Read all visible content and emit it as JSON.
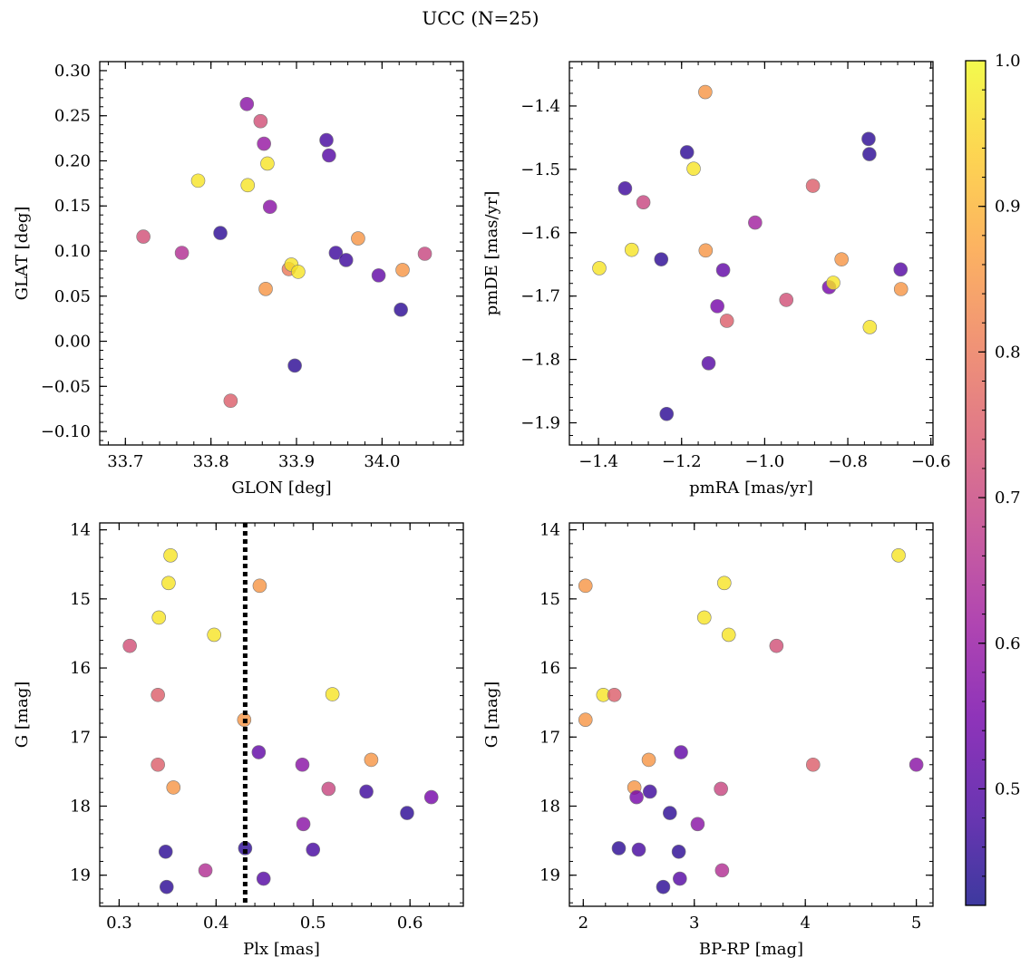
{
  "title": "UCC (N=25)",
  "colorbar": {
    "min": 0.42,
    "max": 1.0,
    "ticks": [
      0.5,
      0.6,
      0.7,
      0.8,
      0.9,
      1.0
    ],
    "tick_labels": [
      "0.5",
      "0.6",
      "0.7",
      "0.8",
      "0.9",
      "1.0"
    ],
    "colormap": "plasma",
    "colormap_stops": [
      "#0d0887",
      "#46039f",
      "#7201a8",
      "#9c179e",
      "#bd3786",
      "#d8576b",
      "#ed7953",
      "#fb9f3a",
      "#fdca26",
      "#f0f921"
    ],
    "alpha": 0.8
  },
  "chart_data": [
    {
      "type": "scatter",
      "name": "positions",
      "xlabel": "GLON [deg]",
      "ylabel": "GLAT [deg]",
      "xlim": [
        33.67,
        34.095
      ],
      "ylim": [
        -0.115,
        0.31
      ],
      "xticks": [
        33.7,
        33.8,
        33.9,
        34.0
      ],
      "xtick_labels": [
        "33.7",
        "33.8",
        "33.9",
        "34.0"
      ],
      "yticks": [
        -0.1,
        -0.05,
        0.0,
        0.05,
        0.1,
        0.15,
        0.2,
        0.25,
        0.3
      ],
      "ytick_labels": [
        "−0.10",
        "−0.05",
        "0.00",
        "0.05",
        "0.10",
        "0.15",
        "0.20",
        "0.25",
        "0.30"
      ],
      "invert_y": false,
      "vline": null,
      "points": [
        {
          "x": 33.721,
          "y": 0.116,
          "c": 0.72
        },
        {
          "x": 33.766,
          "y": 0.098,
          "c": 0.65
        },
        {
          "x": 33.785,
          "y": 0.178,
          "c": 0.97
        },
        {
          "x": 33.811,
          "y": 0.12,
          "c": 0.45
        },
        {
          "x": 33.823,
          "y": -0.066,
          "c": 0.75
        },
        {
          "x": 33.842,
          "y": 0.263,
          "c": 0.58
        },
        {
          "x": 33.843,
          "y": 0.173,
          "c": 0.97
        },
        {
          "x": 33.858,
          "y": 0.244,
          "c": 0.72
        },
        {
          "x": 33.862,
          "y": 0.219,
          "c": 0.6
        },
        {
          "x": 33.864,
          "y": 0.058,
          "c": 0.85
        },
        {
          "x": 33.866,
          "y": 0.197,
          "c": 0.97
        },
        {
          "x": 33.869,
          "y": 0.149,
          "c": 0.58
        },
        {
          "x": 33.891,
          "y": 0.08,
          "c": 0.8
        },
        {
          "x": 33.894,
          "y": 0.085,
          "c": 0.97
        },
        {
          "x": 33.898,
          "y": -0.027,
          "c": 0.45
        },
        {
          "x": 33.902,
          "y": 0.077,
          "c": 0.97
        },
        {
          "x": 33.935,
          "y": 0.223,
          "c": 0.48
        },
        {
          "x": 33.938,
          "y": 0.206,
          "c": 0.5
        },
        {
          "x": 33.946,
          "y": 0.098,
          "c": 0.47
        },
        {
          "x": 33.958,
          "y": 0.09,
          "c": 0.47
        },
        {
          "x": 33.972,
          "y": 0.114,
          "c": 0.85
        },
        {
          "x": 33.996,
          "y": 0.073,
          "c": 0.52
        },
        {
          "x": 34.022,
          "y": 0.035,
          "c": 0.45
        },
        {
          "x": 34.024,
          "y": 0.079,
          "c": 0.85
        },
        {
          "x": 34.05,
          "y": 0.097,
          "c": 0.7
        }
      ]
    },
    {
      "type": "scatter",
      "name": "proper-motions",
      "xlabel": "pmRA [mas/yr]",
      "ylabel": "pmDE [mas/yr]",
      "xlim": [
        -1.47,
        -0.595
      ],
      "ylim": [
        -1.935,
        -1.33
      ],
      "xticks": [
        -1.4,
        -1.2,
        -1.0,
        -0.8,
        -0.6
      ],
      "xtick_labels": [
        "−1.4",
        "−1.2",
        "−1.0",
        "−0.8",
        "−0.6"
      ],
      "yticks": [
        -1.9,
        -1.8,
        -1.7,
        -1.6,
        -1.5,
        -1.4
      ],
      "ytick_labels": [
        "−1.9",
        "−1.8",
        "−1.7",
        "−1.6",
        "−1.5",
        "−1.4"
      ],
      "invert_y": false,
      "vline": null,
      "points": [
        {
          "x": -1.398,
          "y": -1.656,
          "c": 0.97
        },
        {
          "x": -1.336,
          "y": -1.53,
          "c": 0.47
        },
        {
          "x": -1.32,
          "y": -1.627,
          "c": 0.97
        },
        {
          "x": -1.292,
          "y": -1.552,
          "c": 0.7
        },
        {
          "x": -1.249,
          "y": -1.642,
          "c": 0.45
        },
        {
          "x": -1.236,
          "y": -1.886,
          "c": 0.45
        },
        {
          "x": -1.187,
          "y": -1.473,
          "c": 0.45
        },
        {
          "x": -1.171,
          "y": -1.499,
          "c": 0.97
        },
        {
          "x": -1.143,
          "y": -1.378,
          "c": 0.85
        },
        {
          "x": -1.142,
          "y": -1.628,
          "c": 0.85
        },
        {
          "x": -1.135,
          "y": -1.806,
          "c": 0.5
        },
        {
          "x": -1.114,
          "y": -1.716,
          "c": 0.55
        },
        {
          "x": -1.1,
          "y": -1.659,
          "c": 0.52
        },
        {
          "x": -1.091,
          "y": -1.739,
          "c": 0.75
        },
        {
          "x": -1.023,
          "y": -1.584,
          "c": 0.62
        },
        {
          "x": -0.948,
          "y": -1.706,
          "c": 0.72
        },
        {
          "x": -0.884,
          "y": -1.526,
          "c": 0.75
        },
        {
          "x": -0.845,
          "y": -1.686,
          "c": 0.55
        },
        {
          "x": -0.835,
          "y": -1.679,
          "c": 0.97
        },
        {
          "x": -0.815,
          "y": -1.642,
          "c": 0.85
        },
        {
          "x": -0.75,
          "y": -1.452,
          "c": 0.45
        },
        {
          "x": -0.748,
          "y": -1.476,
          "c": 0.45
        },
        {
          "x": -0.747,
          "y": -1.749,
          "c": 0.97
        },
        {
          "x": -0.673,
          "y": -1.658,
          "c": 0.5
        },
        {
          "x": -0.672,
          "y": -1.689,
          "c": 0.85
        }
      ]
    },
    {
      "type": "scatter",
      "name": "parallax-magnitude",
      "xlabel": "Plx [mas]",
      "ylabel": "G [mag]",
      "xlim": [
        0.28,
        0.655
      ],
      "ylim": [
        13.9,
        19.45
      ],
      "xticks": [
        0.3,
        0.4,
        0.5,
        0.6
      ],
      "xtick_labels": [
        "0.3",
        "0.4",
        "0.5",
        "0.6"
      ],
      "yticks": [
        14,
        15,
        16,
        17,
        18,
        19
      ],
      "ytick_labels": [
        "14",
        "15",
        "16",
        "17",
        "18",
        "19"
      ],
      "invert_y": true,
      "vline": 0.43,
      "points": [
        {
          "x": 0.311,
          "y": 15.68,
          "c": 0.72
        },
        {
          "x": 0.34,
          "y": 16.39,
          "c": 0.75
        },
        {
          "x": 0.34,
          "y": 17.4,
          "c": 0.75
        },
        {
          "x": 0.341,
          "y": 15.27,
          "c": 0.97
        },
        {
          "x": 0.348,
          "y": 18.66,
          "c": 0.45
        },
        {
          "x": 0.349,
          "y": 19.17,
          "c": 0.45
        },
        {
          "x": 0.351,
          "y": 14.77,
          "c": 0.97
        },
        {
          "x": 0.353,
          "y": 14.37,
          "c": 0.97
        },
        {
          "x": 0.356,
          "y": 17.73,
          "c": 0.85
        },
        {
          "x": 0.389,
          "y": 18.93,
          "c": 0.65
        },
        {
          "x": 0.398,
          "y": 15.52,
          "c": 0.97
        },
        {
          "x": 0.429,
          "y": 16.75,
          "c": 0.85
        },
        {
          "x": 0.43,
          "y": 18.61,
          "c": 0.45
        },
        {
          "x": 0.444,
          "y": 17.22,
          "c": 0.52
        },
        {
          "x": 0.445,
          "y": 14.81,
          "c": 0.85
        },
        {
          "x": 0.449,
          "y": 19.05,
          "c": 0.5
        },
        {
          "x": 0.489,
          "y": 17.4,
          "c": 0.58
        },
        {
          "x": 0.49,
          "y": 18.26,
          "c": 0.58
        },
        {
          "x": 0.5,
          "y": 18.63,
          "c": 0.48
        },
        {
          "x": 0.516,
          "y": 17.75,
          "c": 0.7
        },
        {
          "x": 0.52,
          "y": 16.38,
          "c": 0.97
        },
        {
          "x": 0.555,
          "y": 17.79,
          "c": 0.47
        },
        {
          "x": 0.56,
          "y": 17.33,
          "c": 0.85
        },
        {
          "x": 0.597,
          "y": 18.1,
          "c": 0.45
        },
        {
          "x": 0.622,
          "y": 17.87,
          "c": 0.55
        }
      ]
    },
    {
      "type": "scatter",
      "name": "color-magnitude",
      "xlabel": "BP-RP [mag]",
      "ylabel": "G [mag]",
      "xlim": [
        1.875,
        5.15
      ],
      "ylim": [
        13.9,
        19.45
      ],
      "xticks": [
        2,
        3,
        4,
        5
      ],
      "xtick_labels": [
        "2",
        "3",
        "4",
        "5"
      ],
      "yticks": [
        14,
        15,
        16,
        17,
        18,
        19
      ],
      "ytick_labels": [
        "14",
        "15",
        "16",
        "17",
        "18",
        "19"
      ],
      "invert_y": true,
      "vline": null,
      "points": [
        {
          "x": 2.02,
          "y": 14.81,
          "c": 0.85
        },
        {
          "x": 2.02,
          "y": 16.75,
          "c": 0.85
        },
        {
          "x": 2.18,
          "y": 16.39,
          "c": 0.97
        },
        {
          "x": 2.28,
          "y": 16.39,
          "c": 0.75
        },
        {
          "x": 2.32,
          "y": 18.61,
          "c": 0.45
        },
        {
          "x": 2.46,
          "y": 17.73,
          "c": 0.85
        },
        {
          "x": 2.48,
          "y": 17.87,
          "c": 0.55
        },
        {
          "x": 2.5,
          "y": 18.63,
          "c": 0.48
        },
        {
          "x": 2.59,
          "y": 17.33,
          "c": 0.85
        },
        {
          "x": 2.6,
          "y": 17.79,
          "c": 0.47
        },
        {
          "x": 2.72,
          "y": 19.17,
          "c": 0.45
        },
        {
          "x": 2.78,
          "y": 18.1,
          "c": 0.45
        },
        {
          "x": 2.86,
          "y": 18.66,
          "c": 0.45
        },
        {
          "x": 2.87,
          "y": 19.05,
          "c": 0.5
        },
        {
          "x": 2.88,
          "y": 17.22,
          "c": 0.52
        },
        {
          "x": 3.03,
          "y": 18.26,
          "c": 0.58
        },
        {
          "x": 3.09,
          "y": 15.27,
          "c": 0.97
        },
        {
          "x": 3.24,
          "y": 17.75,
          "c": 0.7
        },
        {
          "x": 3.25,
          "y": 18.93,
          "c": 0.65
        },
        {
          "x": 3.27,
          "y": 14.77,
          "c": 0.97
        },
        {
          "x": 3.31,
          "y": 15.52,
          "c": 0.97
        },
        {
          "x": 3.74,
          "y": 15.68,
          "c": 0.72
        },
        {
          "x": 4.07,
          "y": 17.4,
          "c": 0.75
        },
        {
          "x": 4.84,
          "y": 14.37,
          "c": 0.97
        },
        {
          "x": 5.0,
          "y": 17.4,
          "c": 0.58
        }
      ]
    }
  ]
}
